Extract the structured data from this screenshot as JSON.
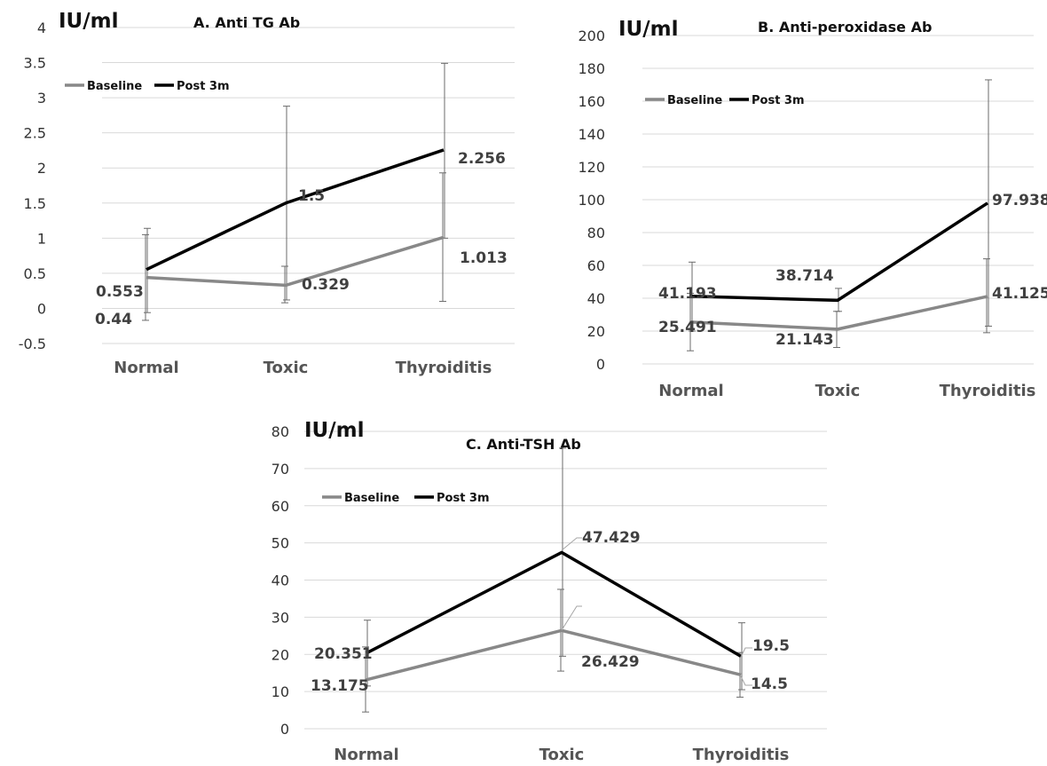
{
  "chart_data": [
    {
      "type": "line",
      "title": "A. Anti TG Ab",
      "ylabel": "IU/ml",
      "categories": [
        "Normal",
        "Toxic",
        "Thyroiditis"
      ],
      "ylim": [
        -0.5,
        4
      ],
      "yticks": [
        -0.5,
        0,
        0.5,
        1,
        1.5,
        2,
        2.5,
        3,
        3.5,
        4
      ],
      "ytick_labels": [
        "-0.5",
        "0",
        "0.5",
        "1",
        "1.5",
        "2",
        "2.5",
        "3",
        "3.5",
        "4"
      ],
      "grid": true,
      "legend_position": "top-left",
      "series": [
        {
          "name": "Baseline",
          "color": "#888888",
          "values": [
            0.44,
            0.329,
            1.013
          ],
          "labels": [
            "0.44",
            "0.329",
            "1.013"
          ],
          "error": [
            [
              -0.17,
              1.05
            ],
            [
              0.08,
              0.6
            ],
            [
              0.1,
              1.93
            ]
          ]
        },
        {
          "name": "Post 3m",
          "color": "#000000",
          "values": [
            0.553,
            1.5,
            2.256
          ],
          "labels": [
            "0.553",
            "1.5",
            "2.256"
          ],
          "error": [
            [
              -0.06,
              1.14
            ],
            [
              0.12,
              2.88
            ],
            [
              1.0,
              3.49
            ]
          ]
        }
      ]
    },
    {
      "type": "line",
      "title": "B. Anti-peroxidase  Ab",
      "ylabel": "IU/ml",
      "categories": [
        "Normal",
        "Toxic",
        "Thyroiditis"
      ],
      "ylim": [
        0,
        200
      ],
      "yticks": [
        0,
        20,
        40,
        60,
        80,
        100,
        120,
        140,
        160,
        180,
        200
      ],
      "ytick_labels": [
        "0",
        "20",
        "40",
        "60",
        "80",
        "100",
        "120",
        "140",
        "160",
        "180",
        "200"
      ],
      "grid": true,
      "legend_position": "top-left",
      "series": [
        {
          "name": "Baseline",
          "color": "#888888",
          "values": [
            25.491,
            21.143,
            41.125
          ],
          "labels": [
            "25.491",
            "21.143",
            "41.125"
          ],
          "error": [
            [
              8,
              43
            ],
            [
              10,
              32
            ],
            [
              19,
              64
            ]
          ]
        },
        {
          "name": "Post 3m",
          "color": "#000000",
          "values": [
            41.193,
            38.714,
            97.938
          ],
          "labels": [
            "41.193",
            "38.714",
            "97.938"
          ],
          "error": [
            [
              20,
              62
            ],
            [
              32,
              46
            ],
            [
              23,
              173
            ]
          ]
        }
      ]
    },
    {
      "type": "line",
      "title": "C. Anti-TSH Ab",
      "ylabel": "IU/ml",
      "categories": [
        "Normal",
        "Toxic",
        "Thyroiditis"
      ],
      "ylim": [
        0,
        80
      ],
      "yticks": [
        0,
        10,
        20,
        30,
        40,
        50,
        60,
        70,
        80
      ],
      "ytick_labels": [
        "0",
        "10",
        "20",
        "30",
        "40",
        "50",
        "60",
        "70",
        "80"
      ],
      "grid": true,
      "legend_position": "top-left",
      "series": [
        {
          "name": "Baseline",
          "color": "#888888",
          "values": [
            13.175,
            26.429,
            14.5
          ],
          "labels": [
            "13.175",
            "26.429",
            "14.5"
          ],
          "error": [
            [
              4.5,
              22
            ],
            [
              15.5,
              37.5
            ],
            [
              8.5,
              20.5
            ]
          ]
        },
        {
          "name": "Post 3m",
          "color": "#000000",
          "values": [
            20.351,
            47.429,
            19.5
          ],
          "labels": [
            "20.351",
            "47.429",
            "19.5"
          ],
          "error": [
            [
              11.5,
              29.2
            ],
            [
              19.5,
              75.5
            ],
            [
              10.5,
              28.5
            ]
          ]
        }
      ]
    }
  ]
}
